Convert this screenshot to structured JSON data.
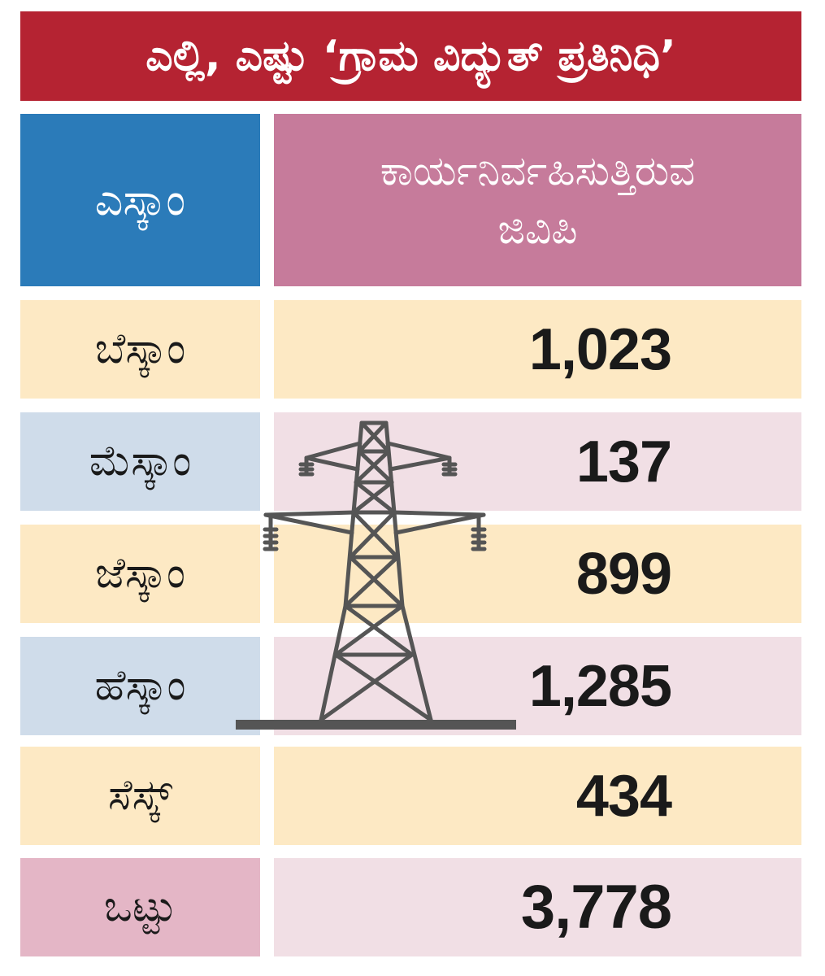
{
  "title": "ಎಲ್ಲಿ, ಎಷ್ಟು ‘ಗ್ರಾಮ ವಿದ್ಯುತ್ ಪ್ರತಿನಿಧಿ’",
  "header": {
    "left": "ಎಸ್ಕಾಂ",
    "right_line1": "ಕಾರ್ಯನಿರ್ವಹಿಸುತ್ತಿರುವ",
    "right_line2": "ಜಿವಿಪಿ"
  },
  "colors": {
    "title_bg": "#b52332",
    "header_left_bg": "#2b7bb9",
    "header_right_bg": "#c67b9b",
    "row_yellow": "#fde9c4",
    "row_blue_left": "#cfdcea",
    "row_pink_right": "#f1dfe5",
    "total_left": "#e4b6c6",
    "tower_stroke": "#555555"
  },
  "icons": {
    "decoration": "transmission-tower-icon"
  },
  "chart_data": {
    "type": "table",
    "columns": [
      "ಎಸ್ಕಾಂ",
      "ಕಾರ್ಯನಿರ್ವಹಿಸುತ್ತಿರುವ ಜಿವಿಪಿ"
    ],
    "rows": [
      {
        "name": "ಬೆಸ್ಕಾಂ",
        "value": "1,023"
      },
      {
        "name": "ಮೆಸ್ಕಾಂ",
        "value": "137"
      },
      {
        "name": "ಜೆಸ್ಕಾಂ",
        "value": "899"
      },
      {
        "name": "ಹೆಸ್ಕಾಂ",
        "value": "1,285"
      },
      {
        "name": "ಸೆಸ್ಕ್",
        "value": "434"
      }
    ],
    "total": {
      "name": "ಒಟ್ಟು",
      "value": "3,778"
    }
  }
}
